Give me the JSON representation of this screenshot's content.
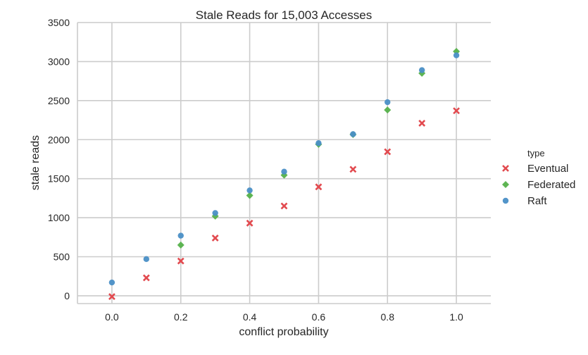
{
  "chart_data": {
    "type": "scatter",
    "title": "Stale Reads for 15,003 Accesses",
    "xlabel": "conflict probability",
    "ylabel": "stale reads",
    "xlim": [
      -0.1,
      1.1
    ],
    "ylim": [
      -100,
      3500
    ],
    "xticks": [
      "0.0",
      "0.2",
      "0.4",
      "0.6",
      "0.8",
      "1.0"
    ],
    "yticks": [
      "0",
      "500",
      "1000",
      "1500",
      "2000",
      "2500",
      "3000",
      "3500"
    ],
    "grid": true,
    "legend": {
      "title": "type",
      "placement": "right"
    },
    "series": [
      {
        "name": "Eventual",
        "marker": "x",
        "color": "#e24a4f",
        "x": [
          0.0,
          0.1,
          0.2,
          0.3,
          0.4,
          0.5,
          0.6,
          0.7,
          0.8,
          0.9,
          1.0
        ],
        "y": [
          -10,
          230,
          445,
          740,
          930,
          1150,
          1395,
          1620,
          1845,
          2210,
          2370
        ]
      },
      {
        "name": "Federated",
        "marker": "diamond",
        "color": "#55b14a",
        "x": [
          0.2,
          0.3,
          0.4,
          0.5,
          0.6,
          0.7,
          0.8,
          0.9,
          1.0
        ],
        "y": [
          650,
          1020,
          1285,
          1545,
          1940,
          2065,
          2380,
          2850,
          3130
        ]
      },
      {
        "name": "Raft",
        "marker": "circle",
        "color": "#4a8fc6",
        "x": [
          0.0,
          0.1,
          0.2,
          0.3,
          0.4,
          0.5,
          0.6,
          0.7,
          0.8,
          0.9,
          1.0
        ],
        "y": [
          170,
          470,
          770,
          1060,
          1350,
          1590,
          1955,
          2070,
          2480,
          2890,
          3080
        ]
      }
    ]
  }
}
